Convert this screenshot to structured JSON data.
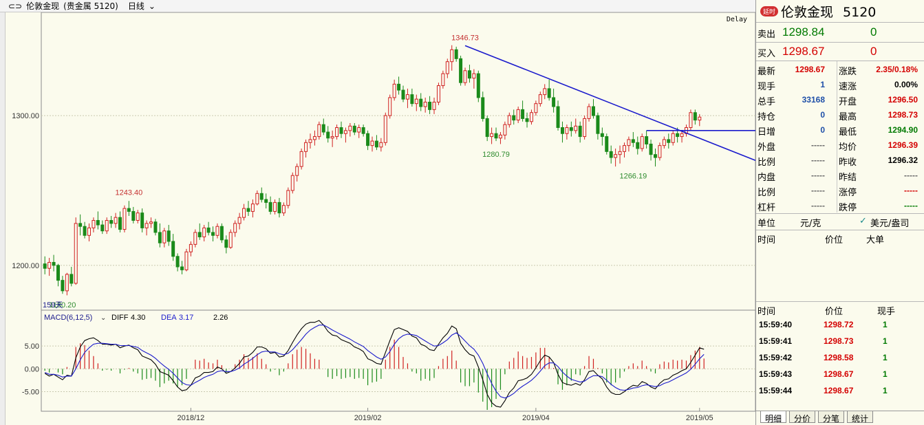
{
  "title_bar": {
    "icon": "link-icon",
    "symbol": "伦敦金现",
    "market": "(贵金属 5120)",
    "period": "日线"
  },
  "chart_meta": {
    "delay_label": "Delay",
    "bar_count_label": "159天"
  },
  "chart_data": {
    "type": "candlestick",
    "price_axis": {
      "ticks": [
        {
          "value": 1300,
          "label": "1300.00"
        },
        {
          "value": 1200,
          "label": "1200.00"
        }
      ],
      "range": [
        1171,
        1368
      ]
    },
    "time_axis": {
      "labels": [
        "2018/12",
        "2019/02",
        "2019/04",
        "2019/05"
      ]
    },
    "candles": [
      [
        1201,
        1206,
        1194,
        1198
      ],
      [
        1198,
        1205,
        1193,
        1202
      ],
      [
        1202,
        1207,
        1196,
        1200
      ],
      [
        1200,
        1201,
        1186,
        1190
      ],
      [
        1190,
        1193,
        1181,
        1183
      ],
      [
        1183,
        1195,
        1180,
        1194
      ],
      [
        1194,
        1199,
        1186,
        1188
      ],
      [
        1188,
        1232,
        1187,
        1228
      ],
      [
        1228,
        1234,
        1220,
        1226
      ],
      [
        1226,
        1229,
        1218,
        1220
      ],
      [
        1220,
        1228,
        1216,
        1225
      ],
      [
        1225,
        1232,
        1222,
        1230
      ],
      [
        1230,
        1236,
        1224,
        1227
      ],
      [
        1227,
        1230,
        1221,
        1223
      ],
      [
        1223,
        1232,
        1221,
        1230
      ],
      [
        1230,
        1233,
        1225,
        1228
      ],
      [
        1228,
        1235,
        1225,
        1232
      ],
      [
        1232,
        1236,
        1222,
        1224
      ],
      [
        1224,
        1240,
        1222,
        1238
      ],
      [
        1238,
        1243,
        1233,
        1236
      ],
      [
        1236,
        1239,
        1228,
        1230
      ],
      [
        1230,
        1237,
        1228,
        1235
      ],
      [
        1235,
        1238,
        1222,
        1225
      ],
      [
        1225,
        1230,
        1220,
        1228
      ],
      [
        1228,
        1232,
        1225,
        1229
      ],
      [
        1229,
        1231,
        1220,
        1222
      ],
      [
        1222,
        1228,
        1212,
        1215
      ],
      [
        1215,
        1225,
        1212,
        1223
      ],
      [
        1223,
        1227,
        1213,
        1216
      ],
      [
        1216,
        1221,
        1203,
        1206
      ],
      [
        1206,
        1208,
        1196,
        1199
      ],
      [
        1199,
        1203,
        1194,
        1197
      ],
      [
        1197,
        1211,
        1196,
        1209
      ],
      [
        1209,
        1216,
        1206,
        1214
      ],
      [
        1214,
        1224,
        1212,
        1222
      ],
      [
        1222,
        1228,
        1217,
        1219
      ],
      [
        1219,
        1227,
        1216,
        1225
      ],
      [
        1225,
        1229,
        1220,
        1222
      ],
      [
        1222,
        1226,
        1216,
        1220
      ],
      [
        1220,
        1228,
        1218,
        1226
      ],
      [
        1226,
        1228,
        1215,
        1217
      ],
      [
        1217,
        1220,
        1208,
        1212
      ],
      [
        1212,
        1224,
        1211,
        1222
      ],
      [
        1222,
        1230,
        1219,
        1228
      ],
      [
        1228,
        1235,
        1224,
        1232
      ],
      [
        1232,
        1241,
        1230,
        1238
      ],
      [
        1238,
        1243,
        1233,
        1236
      ],
      [
        1236,
        1244,
        1232,
        1241
      ],
      [
        1241,
        1250,
        1240,
        1248
      ],
      [
        1248,
        1252,
        1242,
        1244
      ],
      [
        1244,
        1248,
        1238,
        1242
      ],
      [
        1242,
        1246,
        1234,
        1236
      ],
      [
        1236,
        1244,
        1234,
        1242
      ],
      [
        1242,
        1245,
        1232,
        1235
      ],
      [
        1235,
        1242,
        1233,
        1240
      ],
      [
        1240,
        1252,
        1238,
        1250
      ],
      [
        1250,
        1262,
        1248,
        1260
      ],
      [
        1260,
        1268,
        1256,
        1266
      ],
      [
        1266,
        1278,
        1264,
        1276
      ],
      [
        1276,
        1284,
        1272,
        1282
      ],
      [
        1282,
        1288,
        1278,
        1284
      ],
      [
        1284,
        1290,
        1280,
        1286
      ],
      [
        1286,
        1296,
        1284,
        1294
      ],
      [
        1294,
        1298,
        1287,
        1289
      ],
      [
        1289,
        1293,
        1282,
        1285
      ],
      [
        1285,
        1290,
        1279,
        1286
      ],
      [
        1286,
        1294,
        1284,
        1292
      ],
      [
        1292,
        1296,
        1285,
        1288
      ],
      [
        1288,
        1292,
        1282,
        1290
      ],
      [
        1290,
        1295,
        1286,
        1293
      ],
      [
        1293,
        1295,
        1287,
        1289
      ],
      [
        1289,
        1294,
        1285,
        1292
      ],
      [
        1292,
        1294,
        1286,
        1288
      ],
      [
        1288,
        1290,
        1277,
        1280
      ],
      [
        1280,
        1286,
        1276,
        1283
      ],
      [
        1283,
        1287,
        1277,
        1279
      ],
      [
        1279,
        1285,
        1276,
        1282
      ],
      [
        1282,
        1302,
        1280,
        1300
      ],
      [
        1300,
        1314,
        1298,
        1312
      ],
      [
        1312,
        1324,
        1310,
        1321
      ],
      [
        1321,
        1326,
        1314,
        1317
      ],
      [
        1317,
        1320,
        1309,
        1311
      ],
      [
        1311,
        1318,
        1305,
        1314
      ],
      [
        1314,
        1318,
        1306,
        1308
      ],
      [
        1308,
        1314,
        1303,
        1311
      ],
      [
        1311,
        1315,
        1303,
        1306
      ],
      [
        1306,
        1312,
        1302,
        1309
      ],
      [
        1309,
        1313,
        1301,
        1304
      ],
      [
        1304,
        1312,
        1301,
        1309
      ],
      [
        1309,
        1322,
        1307,
        1320
      ],
      [
        1320,
        1330,
        1318,
        1328
      ],
      [
        1328,
        1338,
        1325,
        1336
      ],
      [
        1336,
        1347,
        1330,
        1344
      ],
      [
        1344,
        1346,
        1336,
        1338
      ],
      [
        1338,
        1340,
        1320,
        1322
      ],
      [
        1322,
        1332,
        1320,
        1330
      ],
      [
        1330,
        1334,
        1322,
        1325
      ],
      [
        1325,
        1331,
        1318,
        1328
      ],
      [
        1328,
        1330,
        1309,
        1312
      ],
      [
        1312,
        1316,
        1296,
        1298
      ],
      [
        1298,
        1300,
        1283,
        1286
      ],
      [
        1286,
        1292,
        1281,
        1288
      ],
      [
        1288,
        1292,
        1283,
        1285
      ],
      [
        1285,
        1289,
        1281,
        1287
      ],
      [
        1287,
        1296,
        1284,
        1294
      ],
      [
        1294,
        1302,
        1292,
        1300
      ],
      [
        1300,
        1304,
        1294,
        1297
      ],
      [
        1297,
        1306,
        1295,
        1304
      ],
      [
        1304,
        1310,
        1296,
        1298
      ],
      [
        1298,
        1302,
        1292,
        1296
      ],
      [
        1296,
        1304,
        1294,
        1302
      ],
      [
        1302,
        1310,
        1300,
        1308
      ],
      [
        1308,
        1316,
        1306,
        1314
      ],
      [
        1314,
        1321,
        1311,
        1318
      ],
      [
        1318,
        1324,
        1310,
        1312
      ],
      [
        1312,
        1318,
        1302,
        1306
      ],
      [
        1306,
        1310,
        1290,
        1292
      ],
      [
        1292,
        1296,
        1282,
        1288
      ],
      [
        1288,
        1294,
        1284,
        1292
      ],
      [
        1292,
        1296,
        1286,
        1290
      ],
      [
        1290,
        1298,
        1288,
        1293
      ],
      [
        1293,
        1296,
        1282,
        1286
      ],
      [
        1286,
        1300,
        1284,
        1298
      ],
      [
        1298,
        1308,
        1296,
        1306
      ],
      [
        1306,
        1311,
        1298,
        1300
      ],
      [
        1300,
        1302,
        1284,
        1288
      ],
      [
        1288,
        1292,
        1280,
        1286
      ],
      [
        1286,
        1288,
        1274,
        1276
      ],
      [
        1276,
        1280,
        1268,
        1272
      ],
      [
        1272,
        1278,
        1266,
        1274
      ],
      [
        1274,
        1280,
        1268,
        1276
      ],
      [
        1276,
        1282,
        1272,
        1280
      ],
      [
        1280,
        1286,
        1276,
        1284
      ],
      [
        1284,
        1289,
        1279,
        1282
      ],
      [
        1282,
        1286,
        1274,
        1278
      ],
      [
        1278,
        1288,
        1276,
        1286
      ],
      [
        1286,
        1290,
        1278,
        1281
      ],
      [
        1281,
        1284,
        1270,
        1274
      ],
      [
        1274,
        1278,
        1266,
        1272
      ],
      [
        1272,
        1282,
        1270,
        1280
      ],
      [
        1280,
        1286,
        1278,
        1284
      ],
      [
        1284,
        1288,
        1278,
        1282
      ],
      [
        1282,
        1290,
        1280,
        1288
      ],
      [
        1288,
        1292,
        1282,
        1286
      ],
      [
        1286,
        1290,
        1282,
        1288
      ],
      [
        1288,
        1294,
        1286,
        1292
      ],
      [
        1292,
        1304,
        1290,
        1302
      ],
      [
        1302,
        1304,
        1294,
        1297
      ],
      [
        1297,
        1301,
        1293,
        1299
      ]
    ],
    "price_annotations": [
      {
        "index": 19,
        "value": 1243.4,
        "label": "1243.40",
        "color": "#c43030",
        "position": "above"
      },
      {
        "index": 95,
        "value": 1346.73,
        "label": "1346.73",
        "color": "#c43030",
        "position": "above"
      },
      {
        "index": 102,
        "value": 1280.79,
        "label": "1280.79",
        "color": "#2e8b2e",
        "position": "below"
      },
      {
        "index": 133,
        "value": 1266.19,
        "label": "1266.19",
        "color": "#2e8b2e",
        "position": "below"
      },
      {
        "index": 4,
        "value": 1180.2,
        "label": "1180.20",
        "color": "#2e8b2e",
        "position": "below"
      }
    ],
    "trendlines": [
      {
        "from": {
          "index": 95,
          "value": 1346.73
        },
        "to": {
          "index": 159,
          "value": 1272
        },
        "color": "#1a1acc"
      },
      {
        "from": {
          "index": 136,
          "value": 1290
        },
        "to": {
          "index": 159,
          "value": 1290
        },
        "color": "#1a1acc"
      }
    ],
    "macd": {
      "label": "MACD(6,12,5)",
      "diff_label": "DIFF",
      "diff_value": "4.30",
      "dea_label": "DEA",
      "dea_value": "3.17",
      "hist_value": "2.26",
      "axis": {
        "ticks": [
          {
            "value": 5,
            "label": "5.00"
          },
          {
            "value": 0,
            "label": "0.00"
          },
          {
            "value": -5,
            "label": "-5.00"
          }
        ],
        "range": [
          -9,
          10
        ]
      },
      "diff": [
        -1,
        -1.6,
        -1.2,
        -1.8,
        -2.4,
        -1.4,
        -1.6,
        2.4,
        4.8,
        6.2,
        6.6,
        6.8,
        6.2,
        5.4,
        5.4,
        5.2,
        5.4,
        4.6,
        5,
        5.2,
        4.6,
        4.2,
        2.8,
        2.4,
        2,
        1,
        -0.6,
        -1,
        -1.4,
        -2.6,
        -4,
        -4.8,
        -4.6,
        -3.6,
        -2,
        -1.6,
        -0.8,
        -0.8,
        -0.6,
        0.4,
        0,
        -1,
        -0.6,
        0.2,
        1.2,
        2.6,
        2.8,
        3.6,
        4.8,
        4.8,
        4.4,
        3.4,
        3.6,
        2.6,
        2.8,
        4,
        5.8,
        7.4,
        8.8,
        9.8,
        10.2,
        10.2,
        10.6,
        9.6,
        8.2,
        7.4,
        7.2,
        6.4,
        6,
        5.6,
        4.8,
        4.4,
        3.8,
        2.2,
        1.8,
        1.2,
        1,
        3.6,
        6.2,
        8.6,
        9,
        8.6,
        8.2,
        7.2,
        6.8,
        5.4,
        5,
        4.2,
        4,
        5.4,
        6.8,
        7.8,
        9.4,
        8.8,
        5.6,
        4.2,
        3.2,
        2.8,
        0.4,
        -2.4,
        -5.6,
        -7.4,
        -8.2,
        -8.4,
        -7,
        -5.2,
        -4.2,
        -2.6,
        -2.4,
        -2,
        -1.2,
        0.2,
        1.8,
        3,
        2.6,
        1.4,
        -1.2,
        -3,
        -3.4,
        -3.6,
        -3.2,
        -3.6,
        -2.4,
        -0.6,
        -0.4,
        -1.4,
        -2.2,
        -4,
        -5.2,
        -5.6,
        -5.6,
        -5,
        -4.2,
        -3.6,
        -3.8,
        -2.8,
        -3.2,
        -4,
        -4.4,
        -3.2,
        -2.4,
        -2.2,
        -1.4,
        -1,
        -0.4,
        0,
        1.4,
        3,
        4.6,
        4.3
      ],
      "dea": [
        -0.8,
        -1.2,
        -1.2,
        -1.4,
        -1.8,
        -1.6,
        -1.6,
        0,
        2,
        3.6,
        4.6,
        5.4,
        5.6,
        5.6,
        5.5,
        5.4,
        5.4,
        5.1,
        5.1,
        5.1,
        4.9,
        4.7,
        4,
        3.5,
        3,
        2.3,
        1.4,
        0.6,
        -0.1,
        -1,
        -2,
        -3,
        -3.5,
        -3.6,
        -3,
        -2.5,
        -1.9,
        -1.5,
        -1.2,
        -0.6,
        -0.4,
        -0.6,
        -0.6,
        -0.3,
        0.2,
        1,
        1.6,
        2.3,
        3.1,
        3.7,
        3.9,
        3.7,
        3.7,
        3.3,
        3.1,
        3.4,
        4.2,
        5.3,
        6.4,
        7.6,
        8.5,
        9.1,
        9.6,
        9.6,
        9.1,
        8.5,
        8,
        7.5,
        7,
        6.5,
        5.9,
        5.4,
        4.9,
        4,
        3.3,
        2.6,
        2.1,
        2.6,
        3.8,
        5.4,
        6.6,
        7.3,
        7.6,
        7.5,
        7.3,
        6.7,
        6.1,
        5.5,
        5,
        5.1,
        5.7,
        6.4,
        7.4,
        7.9,
        7.1,
        6.1,
        5.1,
        4.3,
        3,
        1.2,
        -1.1,
        -3.2,
        -4.9,
        -6.1,
        -6.4,
        -6,
        -5.4,
        -4.5,
        -3.8,
        -3.2,
        -2.5,
        -1.6,
        -0.5,
        0.7,
        1.3,
        1.3,
        0.5,
        -0.7,
        -1.6,
        -2.3,
        -2.6,
        -2.9,
        -2.7,
        -2,
        -1.5,
        -1.5,
        -1.7,
        -2.5,
        -3.4,
        -4.1,
        -4.6,
        -4.7,
        -4.5,
        -4.2,
        -4.1,
        -3.7,
        -3.5,
        -3.7,
        -3.9,
        -3.7,
        -3.2,
        -2.9,
        -2.4,
        -1.9,
        -1.4,
        -0.9,
        -0.1,
        1,
        2.2,
        3.17
      ]
    }
  },
  "quote_panel": {
    "badge": "延时",
    "name": "伦敦金现",
    "code": "5120",
    "sell_label": "卖出",
    "sell_price": "1298.84",
    "sell_volume": "0",
    "buy_label": "买入",
    "buy_price": "1298.67",
    "buy_volume": "0",
    "rows": [
      {
        "l_label": "最新",
        "l_value": "1298.67",
        "l_color": "red",
        "r_label": "涨跌",
        "r_value": "2.35/0.18%",
        "r_color": "red"
      },
      {
        "l_label": "现手",
        "l_value": "1",
        "l_color": "blue",
        "r_label": "速涨",
        "r_value": "0.00%",
        "r_color": "black"
      },
      {
        "l_label": "总手",
        "l_value": "33168",
        "l_color": "blue",
        "r_label": "开盘",
        "r_value": "1296.50",
        "r_color": "red"
      },
      {
        "l_label": "持仓",
        "l_value": "0",
        "l_color": "blue",
        "r_label": "最高",
        "r_value": "1298.73",
        "r_color": "red"
      },
      {
        "l_label": "日增",
        "l_value": "0",
        "l_color": "blue",
        "r_label": "最低",
        "r_value": "1294.90",
        "r_color": "green"
      },
      {
        "l_label": "外盘",
        "l_value": "-----",
        "l_color": "gray",
        "r_label": "均价",
        "r_value": "1296.39",
        "r_color": "red"
      },
      {
        "l_label": "比例",
        "l_value": "-----",
        "l_color": "gray",
        "r_label": "昨收",
        "r_value": "1296.32",
        "r_color": "black"
      },
      {
        "l_label": "内盘",
        "l_value": "-----",
        "l_color": "gray",
        "r_label": "昨结",
        "r_value": "-----",
        "r_color": "gray"
      },
      {
        "l_label": "比例",
        "l_value": "-----",
        "l_color": "gray",
        "r_label": "涨停",
        "r_value": "-----",
        "r_color": "red"
      },
      {
        "l_label": "杠杆",
        "l_value": "-----",
        "l_color": "gray",
        "r_label": "跌停",
        "r_value": "-----",
        "r_color": "green"
      }
    ],
    "unit_label": "单位",
    "unit_value": "元/克",
    "currency_option": "美元/盎司",
    "big_header": {
      "time": "时间",
      "price": "价位",
      "big": "大单"
    },
    "ticks_header": {
      "time": "时间",
      "price": "价位",
      "volume": "现手"
    },
    "ticks": [
      {
        "time": "15:59:40",
        "price": "1298.72",
        "volume": "1"
      },
      {
        "time": "15:59:41",
        "price": "1298.73",
        "volume": "1"
      },
      {
        "time": "15:59:42",
        "price": "1298.58",
        "volume": "1"
      },
      {
        "time": "15:59:43",
        "price": "1298.67",
        "volume": "1"
      },
      {
        "time": "15:59:44",
        "price": "1298.67",
        "volume": "1"
      }
    ],
    "tabs": [
      "明细",
      "分价",
      "分笔",
      "统计"
    ]
  }
}
